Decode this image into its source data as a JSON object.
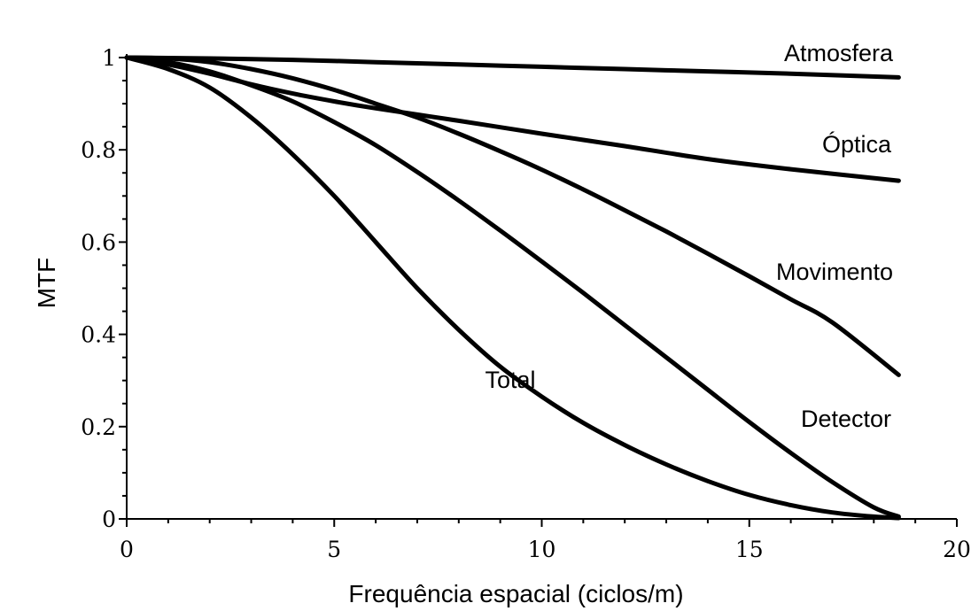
{
  "chart_data": {
    "type": "line",
    "title": "",
    "xlabel": "Frequência espacial (ciclos/m)",
    "ylabel": "MTF",
    "xlim": [
      0,
      20
    ],
    "ylim": [
      0,
      1
    ],
    "x_ticks": [
      0,
      5,
      10,
      15,
      20
    ],
    "x_tick_labels": [
      "0",
      "5",
      "10",
      "15",
      "20"
    ],
    "y_ticks": [
      0,
      0.2,
      0.4,
      0.6,
      0.8,
      1
    ],
    "y_tick_labels": [
      "0",
      "0.2",
      "0.4",
      "0.6",
      "0.8",
      "1"
    ],
    "grid": false,
    "legend": "none",
    "series": [
      {
        "name": "Atmosfera",
        "x": [
          0,
          2,
          4,
          6,
          8,
          10,
          12,
          14,
          16,
          18.6
        ],
        "y": [
          1.0,
          0.998,
          0.995,
          0.99,
          0.985,
          0.98,
          0.975,
          0.97,
          0.965,
          0.957
        ]
      },
      {
        "name": "Óptica",
        "x": [
          0,
          1,
          2,
          3,
          4,
          5,
          6,
          8,
          10,
          12,
          14,
          16,
          18.6
        ],
        "y": [
          1.0,
          0.985,
          0.965,
          0.942,
          0.922,
          0.905,
          0.89,
          0.863,
          0.835,
          0.808,
          0.78,
          0.758,
          0.733
        ]
      },
      {
        "name": "Movimento",
        "x": [
          0,
          1,
          2,
          3,
          4,
          5,
          6,
          7,
          8,
          9,
          10,
          11,
          12,
          13,
          14,
          15,
          16,
          17,
          18.6
        ],
        "y": [
          1.0,
          0.998,
          0.99,
          0.975,
          0.955,
          0.93,
          0.9,
          0.87,
          0.835,
          0.797,
          0.757,
          0.714,
          0.669,
          0.623,
          0.575,
          0.526,
          0.476,
          0.426,
          0.312
        ]
      },
      {
        "name": "Detector",
        "x": [
          0,
          1,
          2,
          3,
          4,
          5,
          6,
          7,
          8,
          9,
          10,
          11,
          12,
          13,
          14,
          15,
          16,
          17,
          18,
          18.6
        ],
        "y": [
          1.0,
          0.99,
          0.97,
          0.94,
          0.905,
          0.86,
          0.81,
          0.752,
          0.69,
          0.625,
          0.558,
          0.49,
          0.42,
          0.35,
          0.28,
          0.21,
          0.143,
          0.08,
          0.025,
          0.005
        ]
      },
      {
        "name": "Total",
        "x": [
          0,
          1,
          2,
          3,
          4,
          5,
          6,
          7,
          8,
          9,
          10,
          11,
          12,
          13,
          14,
          15,
          16,
          17,
          18,
          18.6
        ],
        "y": [
          1.0,
          0.975,
          0.935,
          0.87,
          0.79,
          0.7,
          0.6,
          0.5,
          0.41,
          0.33,
          0.265,
          0.208,
          0.16,
          0.118,
          0.082,
          0.052,
          0.03,
          0.014,
          0.005,
          0.002
        ]
      }
    ]
  }
}
